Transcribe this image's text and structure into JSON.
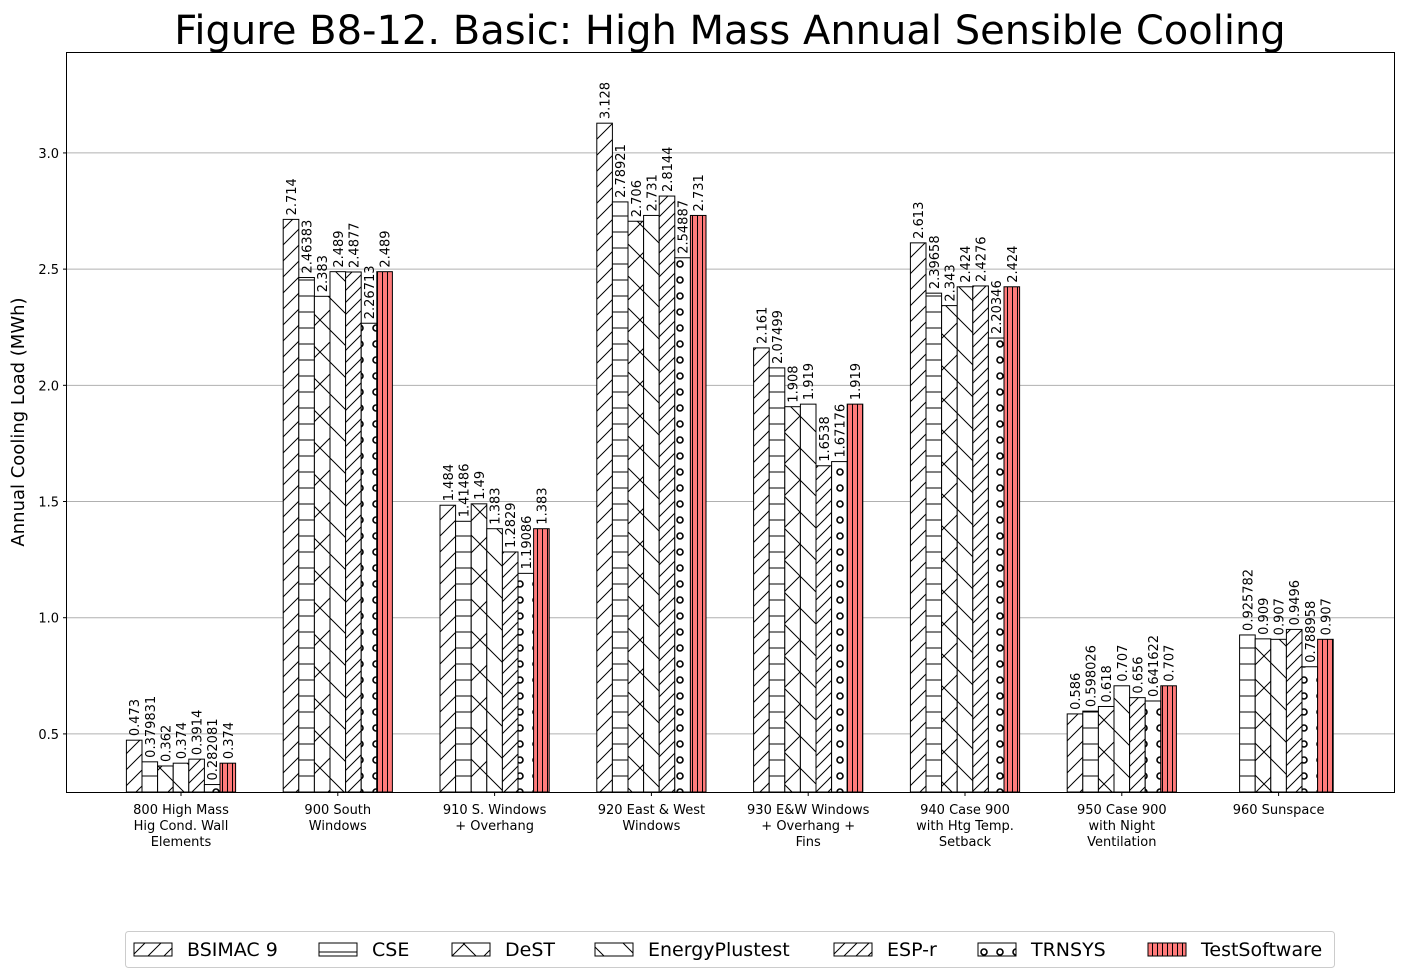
{
  "chart_data": {
    "type": "bar",
    "title": "Figure B8-12.  Basic: High Mass Annual Sensible Cooling",
    "xlabel": "",
    "ylabel": "Annual Cooling Load (MWh)",
    "ylim": [
      0.25,
      3.43
    ],
    "yticks": [
      0.5,
      1.0,
      1.5,
      2.0,
      2.5,
      3.0
    ],
    "ytick_labels": [
      "0.5",
      "1.0",
      "1.5",
      "2.0",
      "2.5",
      "3.0"
    ],
    "grid": "horizontal",
    "legend_position": "bottom",
    "categories": [
      [
        "800 High Mass",
        "Hig Cond. Wall",
        "Elements"
      ],
      [
        "900 South",
        "Windows"
      ],
      [
        "910 S. Windows",
        "+ Overhang"
      ],
      [
        "920 East & West",
        "Windows"
      ],
      [
        "930 E&W Windows",
        "+ Overhang +",
        "Fins"
      ],
      [
        "940 Case 900",
        "with Htg Temp.",
        "Setback"
      ],
      [
        "950 Case 900",
        "with Night",
        "Ventilation"
      ],
      [
        "960 Sunspace"
      ]
    ],
    "series": [
      {
        "name": "BSIMAC 9",
        "pattern": "fwd",
        "color": "#ffffff",
        "values": [
          0.473,
          2.714,
          1.484,
          3.128,
          2.161,
          2.613,
          0.586,
          null
        ],
        "labels": [
          "0.473",
          "2.714",
          "1.484",
          "3.128",
          "2.161",
          "2.613",
          "0.586",
          ""
        ]
      },
      {
        "name": "CSE",
        "pattern": "horiz",
        "color": "#ffffff",
        "values": [
          0.379831,
          2.46383,
          1.41486,
          2.78921,
          2.07499,
          2.39658,
          0.598026,
          0.925782
        ],
        "labels": [
          "0.379831",
          "2.46383",
          "1.41486",
          "2.78921",
          "2.07499",
          "2.39658",
          "0.598026",
          "0.925782"
        ]
      },
      {
        "name": "DeST",
        "pattern": "cross",
        "color": "#ffffff",
        "values": [
          0.362,
          2.383,
          1.49,
          2.706,
          1.908,
          2.343,
          0.618,
          0.909
        ],
        "labels": [
          "0.362",
          "2.383",
          "1.49",
          "2.706",
          "1.908",
          "2.343",
          "0.618",
          "0.909"
        ]
      },
      {
        "name": "EnergyPlustest",
        "pattern": "back",
        "color": "#ffffff",
        "values": [
          0.374,
          2.489,
          1.383,
          2.731,
          1.919,
          2.424,
          0.707,
          0.907
        ],
        "labels": [
          "0.374",
          "2.489",
          "1.383",
          "2.731",
          "1.919",
          "2.424",
          "0.707",
          "0.907"
        ]
      },
      {
        "name": "ESP-r",
        "pattern": "dfwd",
        "color": "#ffffff",
        "values": [
          0.3914,
          2.4877,
          1.2829,
          2.8144,
          1.6538,
          2.4276,
          0.656,
          0.9496
        ],
        "labels": [
          "0.3914",
          "2.4877",
          "1.2829",
          "2.8144",
          "1.6538",
          "2.4276",
          "0.656",
          "0.9496"
        ]
      },
      {
        "name": "TRNSYS",
        "pattern": "circles",
        "color": "#ffffff",
        "values": [
          0.282081,
          2.26713,
          1.19086,
          2.54887,
          1.67176,
          2.20346,
          0.641622,
          0.788958
        ],
        "labels": [
          "0.282081",
          "2.26713",
          "1.19086",
          "2.54887",
          "1.67176",
          "2.20346",
          "0.641622",
          "0.788958"
        ]
      },
      {
        "name": "TestSoftware",
        "pattern": "vert",
        "color": "#ff7b7b",
        "values": [
          0.374,
          2.489,
          1.383,
          2.731,
          1.919,
          2.424,
          0.707,
          0.907
        ],
        "labels": [
          "0.374",
          "2.489",
          "1.383",
          "2.731",
          "1.919",
          "2.424",
          "0.707",
          "0.907"
        ]
      }
    ]
  }
}
